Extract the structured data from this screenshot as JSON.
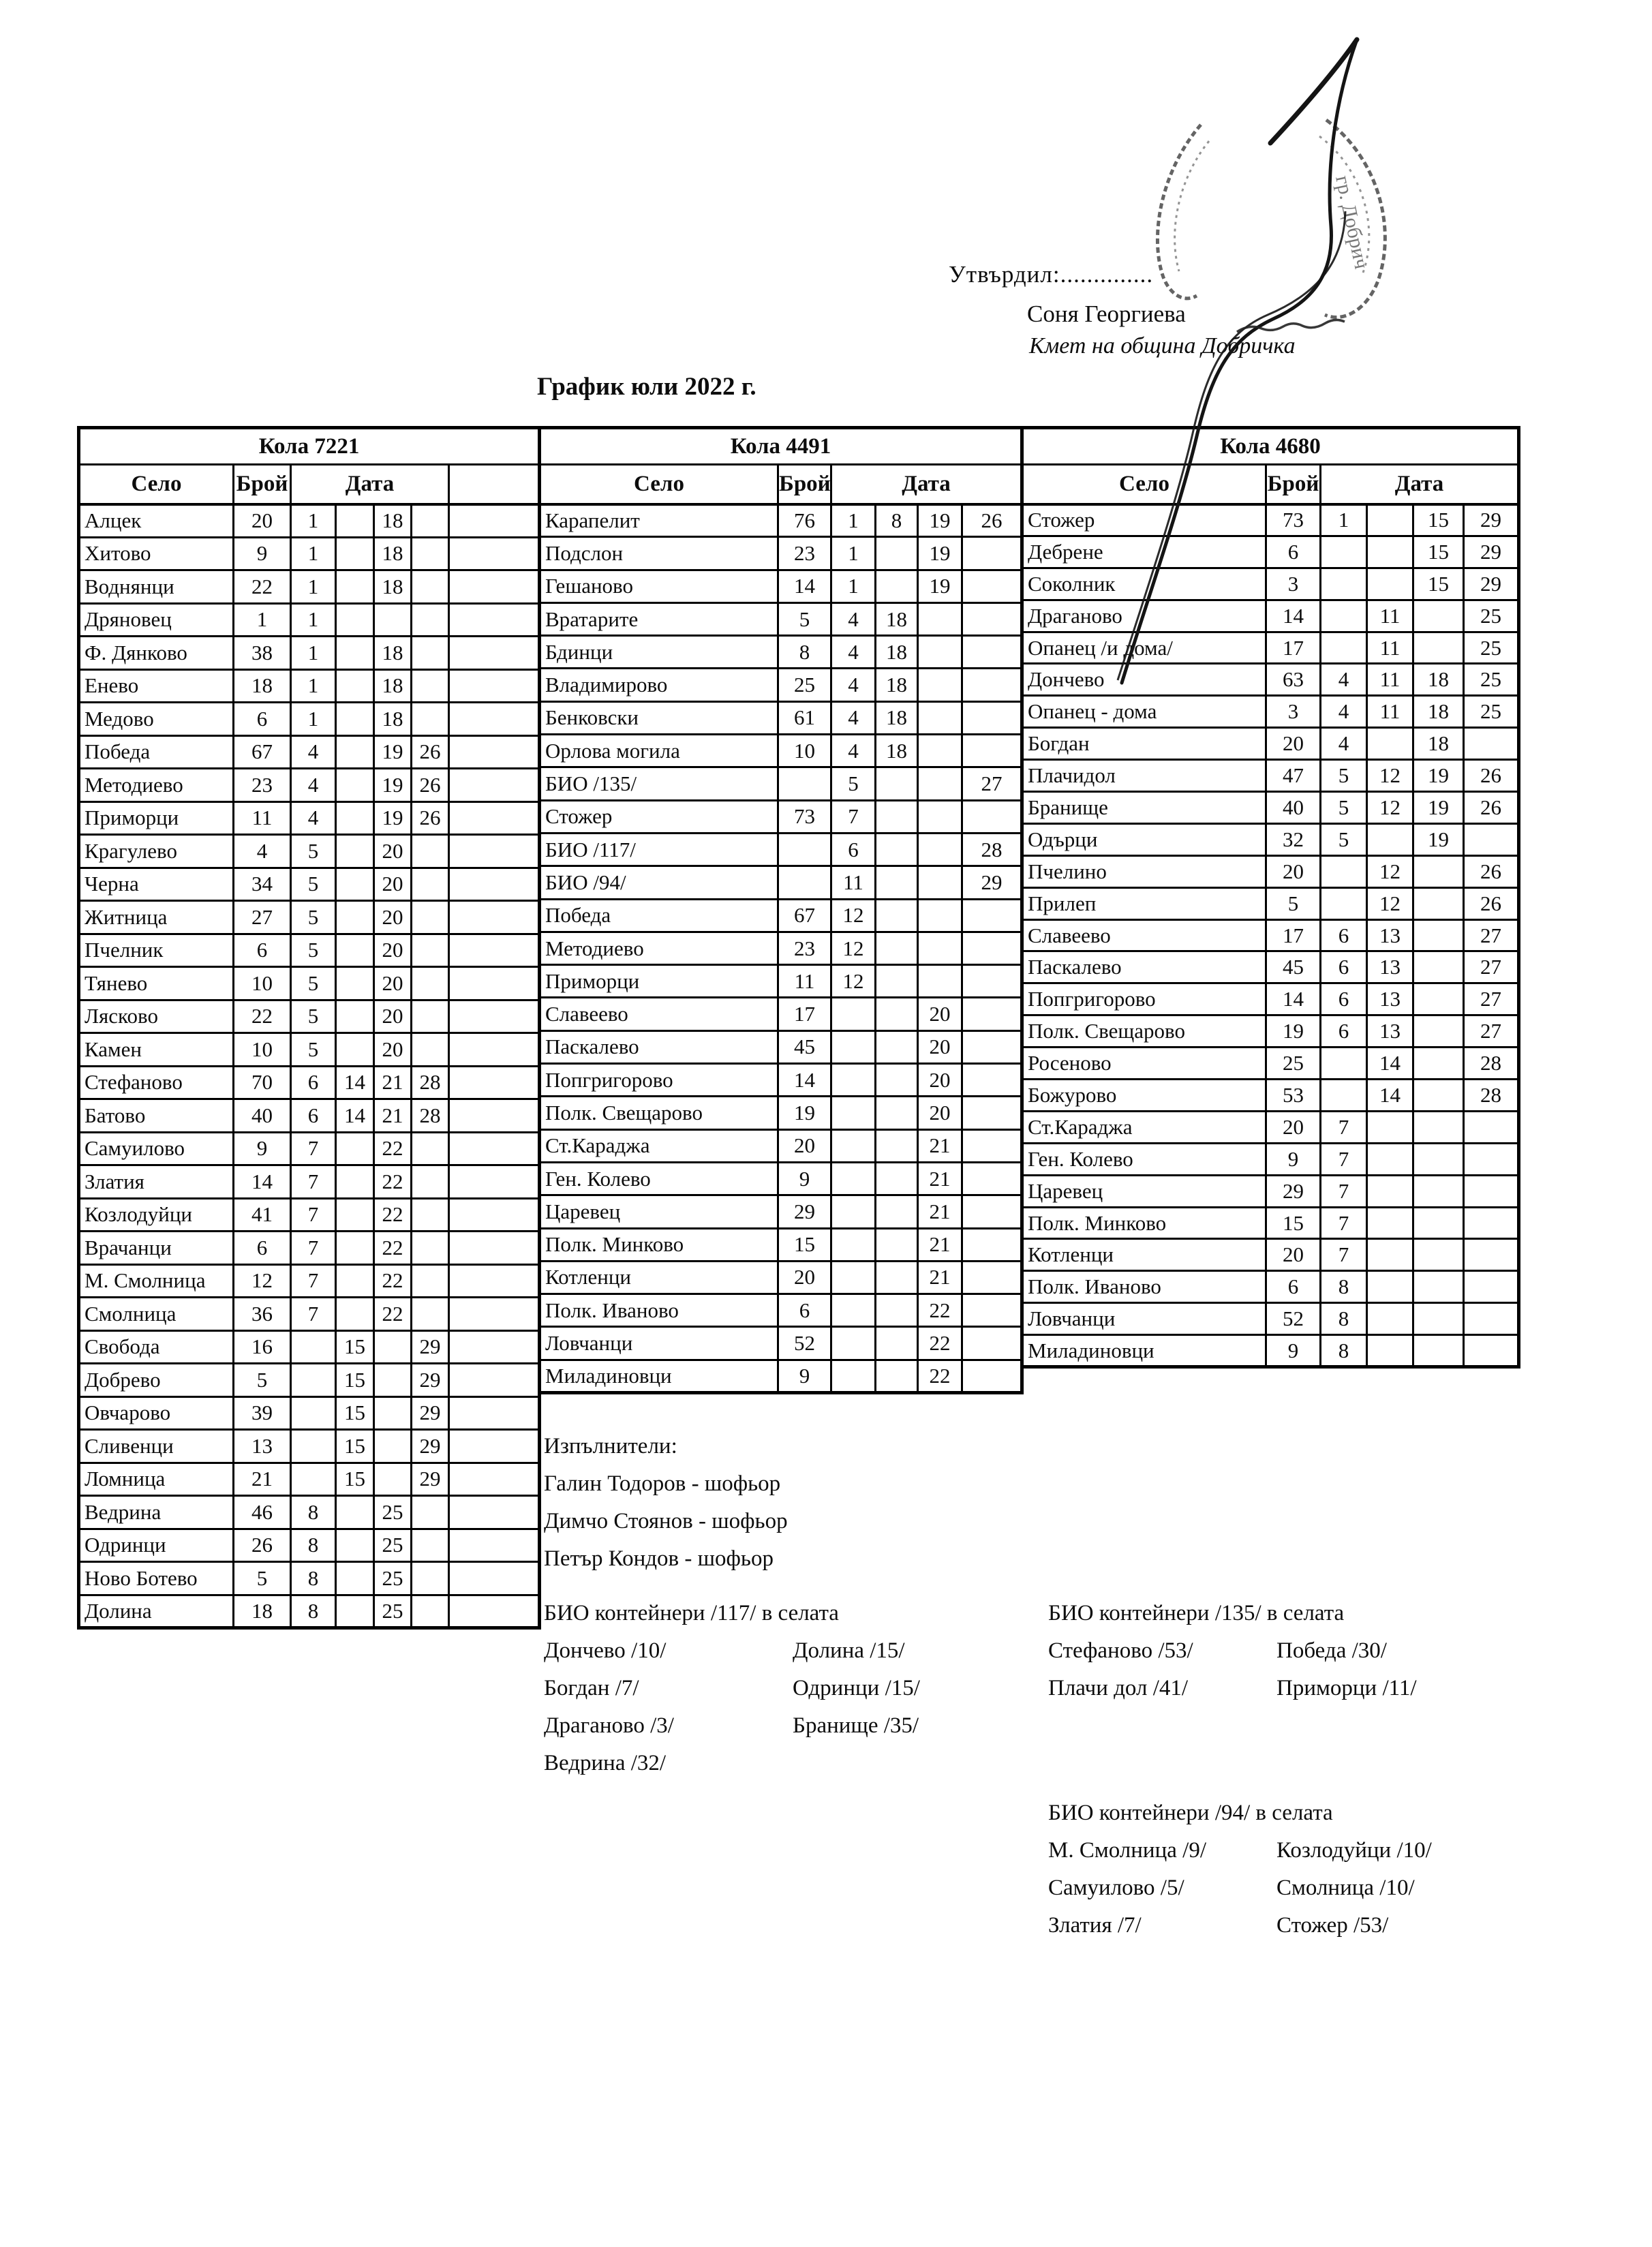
{
  "approval": {
    "label": "Утвърдил:..............",
    "name": "Соня Георгиева",
    "role": "Кмет на община Добричка"
  },
  "title": "График юли 2022 г.",
  "columns": {
    "village": "Село",
    "count": "Брой",
    "date": "Дата"
  },
  "tables": [
    {
      "car": "Кола 7221",
      "rows": [
        [
          "Алцек",
          "20",
          "1",
          "",
          "18",
          ""
        ],
        [
          "Хитово",
          "9",
          "1",
          "",
          "18",
          ""
        ],
        [
          "Воднянци",
          "22",
          "1",
          "",
          "18",
          ""
        ],
        [
          "Дряновец",
          "1",
          "1",
          "",
          "",
          ""
        ],
        [
          "Ф. Дянково",
          "38",
          "1",
          "",
          "18",
          ""
        ],
        [
          "Енево",
          "18",
          "1",
          "",
          "18",
          ""
        ],
        [
          "Медово",
          "6",
          "1",
          "",
          "18",
          ""
        ],
        [
          "Победа",
          "67",
          "4",
          "",
          "19",
          "26"
        ],
        [
          "Методиево",
          "23",
          "4",
          "",
          "19",
          "26"
        ],
        [
          "Приморци",
          "11",
          "4",
          "",
          "19",
          "26"
        ],
        [
          "Крагулево",
          "4",
          "5",
          "",
          "20",
          ""
        ],
        [
          "Черна",
          "34",
          "5",
          "",
          "20",
          ""
        ],
        [
          "Житница",
          "27",
          "5",
          "",
          "20",
          ""
        ],
        [
          "Пчелник",
          "6",
          "5",
          "",
          "20",
          ""
        ],
        [
          "Тянево",
          "10",
          "5",
          "",
          "20",
          ""
        ],
        [
          "Лясково",
          "22",
          "5",
          "",
          "20",
          ""
        ],
        [
          "Камен",
          "10",
          "5",
          "",
          "20",
          ""
        ],
        [
          "Стефаново",
          "70",
          "6",
          "14",
          "21",
          "28"
        ],
        [
          "Батово",
          "40",
          "6",
          "14",
          "21",
          "28"
        ],
        [
          "Самуилово",
          "9",
          "7",
          "",
          "22",
          ""
        ],
        [
          "Златия",
          "14",
          "7",
          "",
          "22",
          ""
        ],
        [
          "Козлодуйци",
          "41",
          "7",
          "",
          "22",
          ""
        ],
        [
          "Врачанци",
          "6",
          "7",
          "",
          "22",
          ""
        ],
        [
          "М. Смолница",
          "12",
          "7",
          "",
          "22",
          ""
        ],
        [
          "Смолница",
          "36",
          "7",
          "",
          "22",
          ""
        ],
        [
          "Свобода",
          "16",
          "",
          "15",
          "",
          "29"
        ],
        [
          "Добрево",
          "5",
          "",
          "15",
          "",
          "29"
        ],
        [
          "Овчарово",
          "39",
          "",
          "15",
          "",
          "29"
        ],
        [
          "Сливенци",
          "13",
          "",
          "15",
          "",
          "29"
        ],
        [
          "Ломница",
          "21",
          "",
          "15",
          "",
          "29"
        ],
        [
          "Ведрина",
          "46",
          "8",
          "",
          "25",
          ""
        ],
        [
          "Одринци",
          "26",
          "8",
          "",
          "25",
          ""
        ],
        [
          "Ново Ботево",
          "5",
          "8",
          "",
          "25",
          ""
        ],
        [
          "Долина",
          "18",
          "8",
          "",
          "25",
          ""
        ]
      ]
    },
    {
      "car": "Кола 4491",
      "rows": [
        [
          "Карапелит",
          "76",
          "1",
          "8",
          "19",
          "26"
        ],
        [
          "Подслон",
          "23",
          "1",
          "",
          "19",
          ""
        ],
        [
          "Гешаново",
          "14",
          "1",
          "",
          "19",
          ""
        ],
        [
          "Вратарите",
          "5",
          "4",
          "18",
          "",
          ""
        ],
        [
          "Бдинци",
          "8",
          "4",
          "18",
          "",
          ""
        ],
        [
          "Владимирово",
          "25",
          "4",
          "18",
          "",
          ""
        ],
        [
          "Бенковски",
          "61",
          "4",
          "18",
          "",
          ""
        ],
        [
          "Орлова могила",
          "10",
          "4",
          "18",
          "",
          ""
        ],
        [
          "БИО /135/",
          "",
          "5",
          "",
          "",
          "27"
        ],
        [
          "Стожер",
          "73",
          "7",
          "",
          "",
          ""
        ],
        [
          "БИО /117/",
          "",
          "6",
          "",
          "",
          "28"
        ],
        [
          "БИО /94/",
          "",
          "11",
          "",
          "",
          "29"
        ],
        [
          "Победа",
          "67",
          "12",
          "",
          "",
          ""
        ],
        [
          "Методиево",
          "23",
          "12",
          "",
          "",
          ""
        ],
        [
          "Приморци",
          "11",
          "12",
          "",
          "",
          ""
        ],
        [
          "Славеево",
          "17",
          "",
          "",
          "20",
          ""
        ],
        [
          "Паскалево",
          "45",
          "",
          "",
          "20",
          ""
        ],
        [
          "Попгригорово",
          "14",
          "",
          "",
          "20",
          ""
        ],
        [
          "Полк. Свещарово",
          "19",
          "",
          "",
          "20",
          ""
        ],
        [
          "Ст.Караджа",
          "20",
          "",
          "",
          "21",
          ""
        ],
        [
          "Ген. Колево",
          "9",
          "",
          "",
          "21",
          ""
        ],
        [
          "Царевец",
          "29",
          "",
          "",
          "21",
          ""
        ],
        [
          "Полк. Минково",
          "15",
          "",
          "",
          "21",
          ""
        ],
        [
          "Котленци",
          "20",
          "",
          "",
          "21",
          ""
        ],
        [
          "Полк. Иваново",
          "6",
          "",
          "",
          "22",
          ""
        ],
        [
          "Ловчанци",
          "52",
          "",
          "",
          "22",
          ""
        ],
        [
          "Миладиновци",
          "9",
          "",
          "",
          "22",
          ""
        ]
      ]
    },
    {
      "car": "Кола 4680",
      "rows": [
        [
          "Стожер",
          "73",
          "1",
          "",
          "15",
          "29"
        ],
        [
          "Дебрене",
          "6",
          "",
          "",
          "15",
          "29"
        ],
        [
          "Соколник",
          "3",
          "",
          "",
          "15",
          "29"
        ],
        [
          "Драганово",
          "14",
          "",
          "11",
          "",
          "25"
        ],
        [
          "Опанец /и дома/",
          "17",
          "",
          "11",
          "",
          "25"
        ],
        [
          "Дончево",
          "63",
          "4",
          "11",
          "18",
          "25"
        ],
        [
          "Опанец - дома",
          "3",
          "4",
          "11",
          "18",
          "25"
        ],
        [
          "Богдан",
          "20",
          "4",
          "",
          "18",
          ""
        ],
        [
          "Плачидол",
          "47",
          "5",
          "12",
          "19",
          "26"
        ],
        [
          "Бранище",
          "40",
          "5",
          "12",
          "19",
          "26"
        ],
        [
          "Одърци",
          "32",
          "5",
          "",
          "19",
          ""
        ],
        [
          "Пчелино",
          "20",
          "",
          "12",
          "",
          "26"
        ],
        [
          "Прилеп",
          "5",
          "",
          "12",
          "",
          "26"
        ],
        [
          "Славеево",
          "17",
          "6",
          "13",
          "",
          "27"
        ],
        [
          "Паскалево",
          "45",
          "6",
          "13",
          "",
          "27"
        ],
        [
          "Попгригорово",
          "14",
          "6",
          "13",
          "",
          "27"
        ],
        [
          "Полк. Свещарово",
          "19",
          "6",
          "13",
          "",
          "27"
        ],
        [
          "Росеново",
          "25",
          "",
          "14",
          "",
          "28"
        ],
        [
          "Божурово",
          "53",
          "",
          "14",
          "",
          "28"
        ],
        [
          "Ст.Караджа",
          "20",
          "7",
          "",
          "",
          ""
        ],
        [
          "Ген. Колево",
          "9",
          "7",
          "",
          "",
          ""
        ],
        [
          "Царевец",
          "29",
          "7",
          "",
          "",
          ""
        ],
        [
          "Полк. Минково",
          "15",
          "7",
          "",
          "",
          ""
        ],
        [
          "Котленци",
          "20",
          "7",
          "",
          "",
          ""
        ],
        [
          "Полк. Иваново",
          "6",
          "8",
          "",
          "",
          ""
        ],
        [
          "Ловчанци",
          "52",
          "8",
          "",
          "",
          ""
        ],
        [
          "Миладиновци",
          "9",
          "8",
          "",
          "",
          ""
        ]
      ]
    }
  ],
  "executors": {
    "title": "Изпълнители:",
    "items": [
      "Галин Тодоров - шофьор",
      "Димчо Стоянов - шофьор",
      "Петър Кондов - шофьор"
    ]
  },
  "bio_blocks": [
    {
      "title": "БИО контейнери /117/ в селата",
      "left": [
        "Дончево /10/",
        "Богдан /7/",
        "Драганово /3/",
        "Ведрина /32/"
      ],
      "right": [
        "Долина /15/",
        "Одринци /15/",
        "Бранище /35/"
      ]
    },
    {
      "title": "БИО контейнери /135/ в селата",
      "left": [
        "Стефаново /53/",
        "Плачи дол /41/"
      ],
      "right": [
        "Победа /30/",
        "Приморци /11/"
      ]
    },
    {
      "title": "БИО контейнери /94/ в селата",
      "left": [
        "М. Смолница /9/",
        "Самуилово /5/",
        "Златия /7/"
      ],
      "right": [
        "Козлодуйци /10/",
        "Смолница /10/",
        "Стожер /53/"
      ]
    }
  ],
  "stamp": {
    "text": "гр. Добрич"
  }
}
